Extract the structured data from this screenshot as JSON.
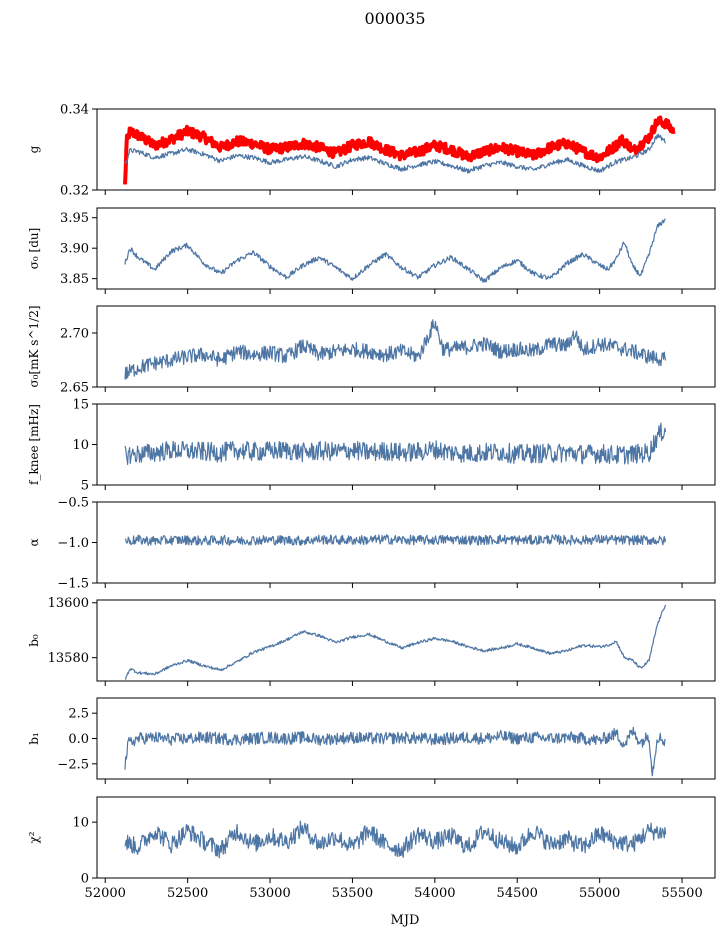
{
  "figure": {
    "title": "000035",
    "xlabel": "MJD"
  },
  "chart_data": [
    {
      "type": "line",
      "ylabel": "g",
      "ylim": [
        0.32,
        0.34
      ],
      "xlim": [
        51950,
        55700
      ],
      "yticks": [
        "0.34",
        "0.32"
      ],
      "ytick_values": [
        0.34,
        0.32
      ],
      "series": [
        {
          "color": "#ff0000",
          "line_width": 4,
          "x": [
            52120,
            52130,
            52150,
            52200,
            52300,
            52400,
            52500,
            52600,
            52700,
            52800,
            52900,
            53000,
            53100,
            53200,
            53300,
            53400,
            53500,
            53600,
            53700,
            53800,
            53900,
            54000,
            54100,
            54200,
            54300,
            54400,
            54500,
            54600,
            54700,
            54800,
            54900,
            55000,
            55100,
            55130,
            55180,
            55200,
            55300,
            55350,
            55400,
            55450
          ],
          "y": [
            0.321,
            0.332,
            0.3345,
            0.3335,
            0.331,
            0.3325,
            0.3345,
            0.333,
            0.3305,
            0.332,
            0.3315,
            0.33,
            0.3305,
            0.3315,
            0.3305,
            0.329,
            0.331,
            0.332,
            0.33,
            0.3285,
            0.3295,
            0.331,
            0.33,
            0.3282,
            0.3295,
            0.3305,
            0.3295,
            0.3285,
            0.3305,
            0.3315,
            0.3295,
            0.328,
            0.331,
            0.3325,
            0.331,
            0.3295,
            0.333,
            0.337,
            0.3365,
            0.3345
          ]
        },
        {
          "color": "#4e76a5",
          "line_width": 1.2,
          "x": [
            52120,
            52150,
            52200,
            52300,
            52400,
            52500,
            52600,
            52700,
            52800,
            52900,
            53000,
            53100,
            53200,
            53300,
            53400,
            53500,
            53600,
            53700,
            53800,
            53900,
            54000,
            54100,
            54200,
            54300,
            54400,
            54500,
            54600,
            54700,
            54800,
            54900,
            55000,
            55100,
            55200,
            55300,
            55350,
            55400
          ],
          "y": [
            0.3262,
            0.3298,
            0.3295,
            0.328,
            0.329,
            0.33,
            0.3288,
            0.3272,
            0.3285,
            0.328,
            0.3268,
            0.3275,
            0.3283,
            0.3272,
            0.3258,
            0.3275,
            0.328,
            0.3265,
            0.3252,
            0.3262,
            0.327,
            0.326,
            0.3247,
            0.326,
            0.3268,
            0.3258,
            0.325,
            0.3265,
            0.3275,
            0.326,
            0.3247,
            0.327,
            0.328,
            0.33,
            0.3335,
            0.332
          ]
        }
      ]
    },
    {
      "type": "line",
      "ylabel": "σ₀ [du]",
      "ylim": [
        3.833,
        3.966
      ],
      "xlim": [
        51950,
        55700
      ],
      "yticks": [
        "3.95",
        "3.90",
        "3.85"
      ],
      "ytick_values": [
        3.95,
        3.9,
        3.85
      ],
      "series": [
        {
          "color": "#4e76a5",
          "line_width": 1.2,
          "x": [
            52120,
            52150,
            52200,
            52300,
            52400,
            52500,
            52600,
            52700,
            52800,
            52900,
            53000,
            53100,
            53200,
            53300,
            53400,
            53500,
            53600,
            53700,
            53800,
            53900,
            54000,
            54100,
            54200,
            54300,
            54400,
            54500,
            54600,
            54700,
            54800,
            54900,
            55000,
            55050,
            55100,
            55150,
            55200,
            55250,
            55300,
            55350,
            55400
          ],
          "y": [
            3.875,
            3.9,
            3.885,
            3.865,
            3.895,
            3.905,
            3.875,
            3.858,
            3.88,
            3.893,
            3.87,
            3.852,
            3.872,
            3.885,
            3.868,
            3.85,
            3.872,
            3.89,
            3.868,
            3.852,
            3.872,
            3.885,
            3.866,
            3.846,
            3.868,
            3.88,
            3.858,
            3.85,
            3.875,
            3.89,
            3.872,
            3.865,
            3.882,
            3.91,
            3.87,
            3.855,
            3.89,
            3.935,
            3.948
          ]
        }
      ]
    },
    {
      "type": "line",
      "ylabel": "σ₀[mK s^1/2]",
      "ylim": [
        2.65,
        2.725
      ],
      "xlim": [
        51950,
        55700
      ],
      "yticks": [
        "2.70",
        "2.65"
      ],
      "ytick_values": [
        2.7,
        2.65
      ],
      "series": [
        {
          "color": "#4e76a5",
          "line_width": 1.2,
          "x": [
            52120,
            52200,
            52300,
            52400,
            52500,
            52600,
            52700,
            52800,
            52900,
            53000,
            53100,
            53200,
            53300,
            53400,
            53500,
            53600,
            53700,
            53800,
            53900,
            54000,
            54050,
            54100,
            54200,
            54300,
            54400,
            54500,
            54600,
            54700,
            54800,
            54850,
            54900,
            55000,
            55100,
            55200,
            55300,
            55400
          ],
          "y": [
            2.662,
            2.668,
            2.672,
            2.675,
            2.678,
            2.68,
            2.675,
            2.683,
            2.68,
            2.682,
            2.678,
            2.688,
            2.68,
            2.683,
            2.685,
            2.683,
            2.68,
            2.683,
            2.678,
            2.71,
            2.685,
            2.685,
            2.687,
            2.69,
            2.683,
            2.685,
            2.683,
            2.69,
            2.688,
            2.7,
            2.684,
            2.69,
            2.687,
            2.683,
            2.678,
            2.675
          ]
        }
      ]
    },
    {
      "type": "line",
      "ylabel": "f_knee [mHz]",
      "ylim": [
        5,
        15
      ],
      "xlim": [
        51950,
        55700
      ],
      "yticks": [
        "15",
        "10",
        "5"
      ],
      "ytick_values": [
        15,
        10,
        5
      ],
      "series": [
        {
          "color": "#4e76a5",
          "line_width": 1.2,
          "x": [
            52120,
            52200,
            52300,
            52400,
            52500,
            52600,
            52700,
            52800,
            52900,
            53000,
            53100,
            53200,
            53300,
            53400,
            53500,
            53600,
            53700,
            53800,
            53900,
            54000,
            54100,
            54200,
            54300,
            54400,
            54500,
            54600,
            54700,
            54800,
            54900,
            55000,
            55100,
            55200,
            55300,
            55350,
            55400
          ],
          "y": [
            8.7,
            8.8,
            9.0,
            9.3,
            9.2,
            9.1,
            9.0,
            9.3,
            9.1,
            9.2,
            9.3,
            9.0,
            9.2,
            9.1,
            9.3,
            9.0,
            9.2,
            9.0,
            9.1,
            9.4,
            9.0,
            8.9,
            9.0,
            9.1,
            8.8,
            8.9,
            8.9,
            9.0,
            8.8,
            8.9,
            8.7,
            8.8,
            9.0,
            11.0,
            12.0
          ]
        }
      ]
    },
    {
      "type": "line",
      "ylabel": "α",
      "ylim": [
        -1.5,
        -0.5
      ],
      "xlim": [
        51950,
        55700
      ],
      "yticks": [
        "−0.5",
        "−1.0",
        "−1.5"
      ],
      "ytick_values": [
        -0.5,
        -1.0,
        -1.5
      ],
      "series": [
        {
          "color": "#4e76a5",
          "line_width": 1.2,
          "x": [
            52120,
            52200,
            52300,
            52400,
            52500,
            52600,
            52700,
            52800,
            52900,
            53000,
            53100,
            53200,
            53300,
            53400,
            53500,
            53600,
            53700,
            53800,
            53900,
            54000,
            54100,
            54200,
            54300,
            54400,
            54500,
            54600,
            54700,
            54800,
            54900,
            55000,
            55100,
            55200,
            55300,
            55400
          ],
          "y": [
            -0.98,
            -0.97,
            -0.98,
            -0.97,
            -0.97,
            -0.98,
            -0.97,
            -0.98,
            -0.97,
            -0.97,
            -0.97,
            -0.98,
            -0.96,
            -0.97,
            -0.97,
            -0.97,
            -0.96,
            -0.97,
            -0.97,
            -0.97,
            -0.96,
            -0.97,
            -0.97,
            -0.96,
            -0.97,
            -0.97,
            -0.96,
            -0.97,
            -0.97,
            -0.96,
            -0.97,
            -0.97,
            -0.97,
            -0.98
          ]
        }
      ]
    },
    {
      "type": "line",
      "ylabel": "b₀",
      "ylim": [
        13571.5,
        13601
      ],
      "xlim": [
        51950,
        55700
      ],
      "yticks": [
        "13600",
        "13580"
      ],
      "ytick_values": [
        13600,
        13580
      ],
      "series": [
        {
          "color": "#4e76a5",
          "line_width": 1.2,
          "x": [
            52120,
            52150,
            52200,
            52300,
            52400,
            52500,
            52600,
            52700,
            52800,
            52900,
            53000,
            53100,
            53200,
            53300,
            53400,
            53500,
            53600,
            53700,
            53800,
            53900,
            54000,
            54100,
            54200,
            54300,
            54400,
            54500,
            54600,
            54700,
            54800,
            54900,
            55000,
            55050,
            55100,
            55150,
            55200,
            55250,
            55300,
            55350,
            55400
          ],
          "y": [
            13572.0,
            13576.0,
            13574.5,
            13574.0,
            13577.0,
            13579.0,
            13577.0,
            13575.5,
            13578.5,
            13582.0,
            13584.0,
            13586.5,
            13589.5,
            13588.0,
            13585.5,
            13587.5,
            13588.5,
            13586.0,
            13583.5,
            13585.5,
            13587.0,
            13586.0,
            13584.0,
            13582.5,
            13583.5,
            13585.0,
            13583.5,
            13581.5,
            13582.5,
            13584.5,
            13584.0,
            13584.5,
            13586.0,
            13580.0,
            13579.0,
            13576.0,
            13579.0,
            13592.0,
            13599.5
          ]
        }
      ]
    },
    {
      "type": "line",
      "ylabel": "b₁",
      "ylim": [
        -4.0,
        4.0
      ],
      "xlim": [
        51950,
        55700
      ],
      "yticks": [
        "2.5",
        "0.0",
        "−2.5"
      ],
      "ytick_values": [
        2.5,
        0.0,
        -2.5
      ],
      "series": [
        {
          "color": "#4e76a5",
          "line_width": 1.2,
          "x": [
            52120,
            52140,
            52200,
            52300,
            52400,
            52500,
            52600,
            52700,
            52800,
            52900,
            53000,
            53100,
            53200,
            53300,
            53400,
            53500,
            53600,
            53700,
            53800,
            53900,
            54000,
            54100,
            54200,
            54300,
            54400,
            54500,
            54600,
            54700,
            54800,
            54900,
            55000,
            55100,
            55150,
            55200,
            55250,
            55300,
            55320,
            55350,
            55400
          ],
          "y": [
            -2.6,
            -0.5,
            0.0,
            0.1,
            -0.1,
            0.0,
            0.1,
            0.0,
            -0.1,
            0.0,
            0.1,
            0.0,
            0.1,
            -0.1,
            0.0,
            0.1,
            0.0,
            0.0,
            0.1,
            0.0,
            -0.1,
            0.0,
            0.1,
            0.0,
            0.2,
            0.0,
            0.1,
            0.0,
            0.1,
            0.0,
            -0.2,
            0.5,
            -0.6,
            0.7,
            -0.4,
            0.3,
            -3.5,
            0.2,
            -0.3
          ]
        }
      ]
    },
    {
      "type": "line",
      "ylabel": "χ²",
      "ylim": [
        0,
        14.5
      ],
      "xlim": [
        51950,
        55700
      ],
      "yticks": [
        "10",
        "0"
      ],
      "ytick_values": [
        10,
        0
      ],
      "series": [
        {
          "color": "#4e76a5",
          "line_width": 1.2,
          "x": [
            52120,
            52200,
            52300,
            52400,
            52500,
            52600,
            52700,
            52800,
            52900,
            53000,
            53100,
            53200,
            53300,
            53400,
            53500,
            53600,
            53700,
            53800,
            53900,
            54000,
            54100,
            54200,
            54300,
            54400,
            54500,
            54600,
            54700,
            54800,
            54900,
            55000,
            55100,
            55200,
            55300,
            55400
          ],
          "y": [
            6.5,
            5.5,
            8.5,
            6.0,
            8.5,
            6.5,
            5.0,
            8.5,
            6.0,
            7.5,
            6.5,
            9.0,
            6.0,
            7.5,
            5.5,
            8.5,
            6.0,
            5.0,
            8.0,
            6.5,
            7.5,
            5.5,
            8.5,
            6.5,
            5.5,
            8.5,
            6.0,
            7.0,
            5.5,
            8.0,
            6.5,
            6.0,
            8.5,
            8.0
          ]
        }
      ]
    }
  ],
  "xaxis": {
    "ticks": [
      "52000",
      "52500",
      "53000",
      "53500",
      "54000",
      "54500",
      "55000",
      "55500"
    ],
    "tick_values": [
      52000,
      52500,
      53000,
      53500,
      54000,
      54500,
      55000,
      55500
    ]
  }
}
